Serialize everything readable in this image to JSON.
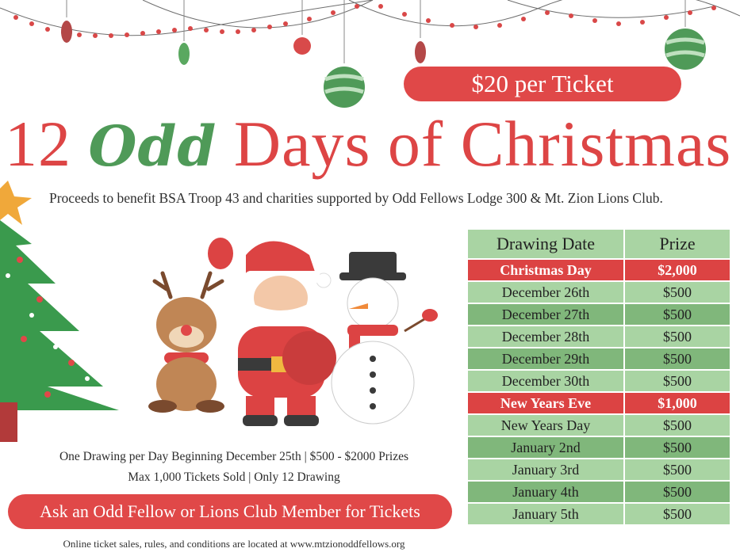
{
  "ticket_price": "$20 per Ticket",
  "title": {
    "part1": "12",
    "odd": "Odd",
    "part2": "Days of Christmas"
  },
  "subtitle": "Proceeds to benefit BSA Troop 43 and charities supported by Odd Fellows Lodge 300 & Mt. Zion Lions Club.",
  "table": {
    "headers": [
      "Drawing Date",
      "Prize"
    ],
    "rows": [
      {
        "date": "Christmas Day",
        "prize": "$2,000",
        "style": "red"
      },
      {
        "date": "December 26th",
        "prize": "$500",
        "style": "light"
      },
      {
        "date": "December 27th",
        "prize": "$500",
        "style": "dark"
      },
      {
        "date": "December 28th",
        "prize": "$500",
        "style": "light"
      },
      {
        "date": "December 29th",
        "prize": "$500",
        "style": "dark"
      },
      {
        "date": "December 30th",
        "prize": "$500",
        "style": "light"
      },
      {
        "date": "New Years Eve",
        "prize": "$1,000",
        "style": "red"
      },
      {
        "date": "New Years Day",
        "prize": "$500",
        "style": "light"
      },
      {
        "date": "January 2nd",
        "prize": "$500",
        "style": "dark"
      },
      {
        "date": "January 3rd",
        "prize": "$500",
        "style": "light"
      },
      {
        "date": "January 4th",
        "prize": "$500",
        "style": "dark"
      },
      {
        "date": "January 5th",
        "prize": "$500",
        "style": "light"
      }
    ]
  },
  "info_line1": "One Drawing per Day Beginning December 25th  |  $500 - $2000 Prizes",
  "info_line2": "Max 1,000 Tickets Sold  |  Only 12 Drawing",
  "cta": "Ask an Odd Fellow or Lions Club Member for Tickets",
  "footer": "Online ticket sales, rules, and conditions are located at www.mtzionoddfellows.org",
  "colors": {
    "red": "#e04848",
    "green": "#4f9a58",
    "table_light": "#a9d4a3",
    "table_dark": "#80b77b"
  },
  "decorations": [
    "garland-string",
    "ornament-icons",
    "christmas-tree-illustration",
    "reindeer-illustration",
    "santa-illustration",
    "snowman-illustration"
  ]
}
